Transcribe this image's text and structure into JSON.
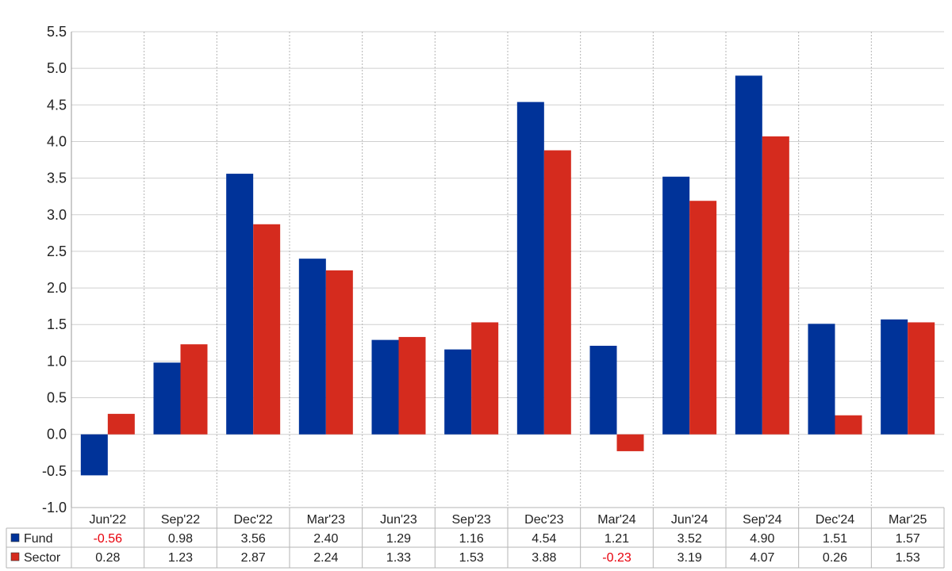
{
  "chart_data": {
    "type": "bar",
    "title": "",
    "xlabel": "",
    "ylabel": "",
    "ylim": [
      -1.0,
      5.5
    ],
    "ytick_step": 0.5,
    "grid": true,
    "categories": [
      "Jun'22",
      "Sep'22",
      "Dec'22",
      "Mar'23",
      "Jun'23",
      "Sep'23",
      "Dec'23",
      "Mar'24",
      "Jun'24",
      "Sep'24",
      "Dec'24",
      "Mar'25"
    ],
    "series": [
      {
        "name": "Fund",
        "color": "#003399",
        "values": [
          -0.56,
          0.98,
          3.56,
          2.4,
          1.29,
          1.16,
          4.54,
          1.21,
          3.52,
          4.9,
          1.51,
          1.57
        ]
      },
      {
        "name": "Sector",
        "color": "#d52b1e",
        "values": [
          0.28,
          1.23,
          2.87,
          2.24,
          1.33,
          1.53,
          3.88,
          -0.23,
          3.19,
          4.07,
          0.26,
          1.53
        ]
      }
    ],
    "table": {
      "rows": [
        {
          "label": "Fund",
          "cells": [
            "-0.56",
            "0.98",
            "3.56",
            "2.40",
            "1.29",
            "1.16",
            "4.54",
            "1.21",
            "3.52",
            "4.90",
            "1.51",
            "1.57"
          ]
        },
        {
          "label": "Sector",
          "cells": [
            "0.28",
            "1.23",
            "2.87",
            "2.24",
            "1.33",
            "1.53",
            "3.88",
            "-0.23",
            "3.19",
            "4.07",
            "0.26",
            "1.53"
          ]
        }
      ],
      "negative_color": "#e8000b"
    }
  }
}
